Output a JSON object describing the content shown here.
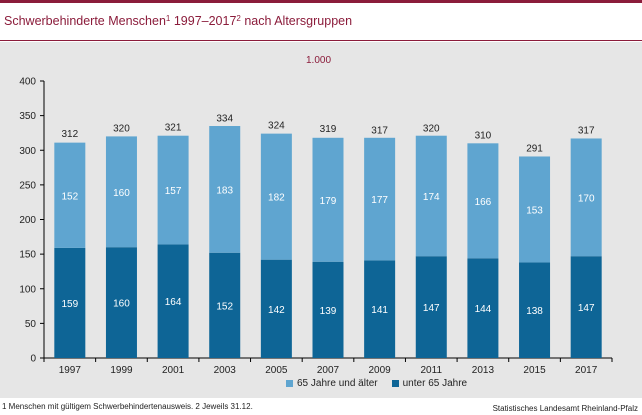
{
  "title": {
    "text": "Schwerbehinderte Menschen",
    "sup1": "1",
    "range": " 1997–2017",
    "sup2": "2",
    "suffix": " nach Altersgruppen"
  },
  "footnote": "1 Menschen mit gültigem Schwerbehindertenausweis. 2 Jeweils 31.12.",
  "source": "Statistisches Landesamt Rheinland-Pfalz",
  "colors": {
    "brand": "#8b1c3b",
    "under65": "#0e6596",
    "over65": "#5fa5d0",
    "panel": "#e6e6e6"
  },
  "chart_data": {
    "type": "bar",
    "stacked": true,
    "unit_label": "1.000",
    "categories": [
      "1997",
      "1999",
      "2001",
      "2003",
      "2005",
      "2007",
      "2009",
      "2011",
      "2013",
      "2015",
      "2017"
    ],
    "series": [
      {
        "name": "unter 65 Jahre",
        "values": [
          159,
          160,
          164,
          152,
          142,
          139,
          141,
          147,
          144,
          138,
          147
        ]
      },
      {
        "name": "65 Jahre und älter",
        "values": [
          152,
          160,
          157,
          183,
          182,
          179,
          177,
          174,
          166,
          153,
          170
        ]
      }
    ],
    "totals": [
      312,
      320,
      321,
      334,
      324,
      319,
      317,
      320,
      310,
      291,
      317
    ],
    "ylim": [
      0,
      400
    ],
    "yticks": [
      0,
      50,
      100,
      150,
      200,
      250,
      300,
      350,
      400
    ],
    "grid": false,
    "legend": [
      "65 Jahre und älter",
      "unter 65 Jahre"
    ],
    "legend_position": "bottom"
  }
}
